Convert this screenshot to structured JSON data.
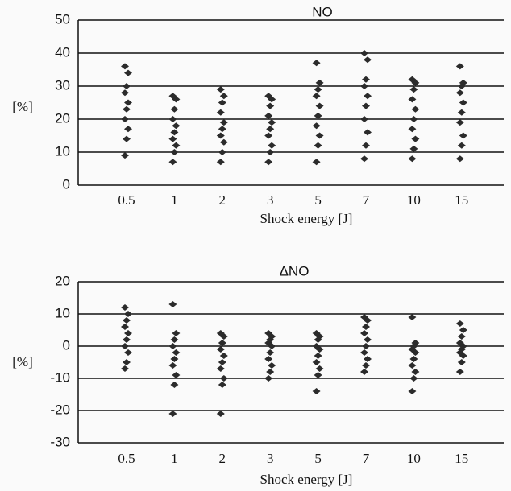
{
  "chart_data": [
    {
      "type": "strip",
      "title": "NO",
      "y_label": "[%]",
      "x_label": "Shock energy [J]",
      "categories": [
        "0.5",
        "1",
        "2",
        "3",
        "5",
        "7",
        "10",
        "15"
      ],
      "values": [
        [
          9,
          14,
          17,
          20,
          23,
          25,
          28,
          30,
          34,
          36
        ],
        [
          7,
          10,
          12,
          14,
          16,
          18,
          20,
          23,
          26,
          27
        ],
        [
          7,
          10,
          13,
          15,
          17,
          19,
          22,
          25,
          27,
          29
        ],
        [
          7,
          10,
          12,
          15,
          17,
          19,
          21,
          24,
          26,
          27
        ],
        [
          7,
          12,
          15,
          18,
          21,
          24,
          27,
          29,
          31,
          37
        ],
        [
          8,
          12,
          16,
          20,
          24,
          27,
          30,
          32,
          38,
          40
        ],
        [
          8,
          11,
          14,
          17,
          20,
          23,
          26,
          29,
          31,
          32
        ],
        [
          8,
          12,
          15,
          19,
          22,
          25,
          28,
          30,
          31,
          36
        ]
      ],
      "color": "#2b2b2b",
      "ylim": [
        0,
        50
      ],
      "yticks": [
        0,
        10,
        20,
        30,
        40,
        50
      ],
      "grid": true
    },
    {
      "type": "strip",
      "title": "ΔNO",
      "y_label": "[%]",
      "x_label": "Shock energy [J]",
      "categories": [
        "0.5",
        "1",
        "2",
        "3",
        "5",
        "7",
        "10",
        "15"
      ],
      "values": [
        [
          -7,
          -5,
          -2,
          0,
          2,
          4,
          6,
          8,
          10,
          12
        ],
        [
          -21,
          -12,
          -9,
          -6,
          -4,
          -2,
          0,
          2,
          4,
          13
        ],
        [
          -21,
          -12,
          -10,
          -7,
          -5,
          -3,
          -1,
          1,
          3,
          4
        ],
        [
          -10,
          -8,
          -6,
          -4,
          -2,
          0,
          1,
          2,
          3,
          4
        ],
        [
          -14,
          -9,
          -7,
          -5,
          -3,
          -1,
          0,
          2,
          3,
          4
        ],
        [
          -8,
          -6,
          -4,
          -2,
          0,
          2,
          4,
          6,
          8,
          9
        ],
        [
          -14,
          -10,
          -8,
          -6,
          -4,
          -2,
          -1,
          0,
          1,
          9
        ],
        [
          -8,
          -5,
          -3,
          -2,
          -1,
          0,
          1,
          3,
          5,
          7
        ]
      ],
      "color": "#2b2b2b",
      "ylim": [
        -30,
        20
      ],
      "yticks": [
        -30,
        -20,
        -10,
        0,
        10,
        20
      ],
      "grid": true
    }
  ]
}
